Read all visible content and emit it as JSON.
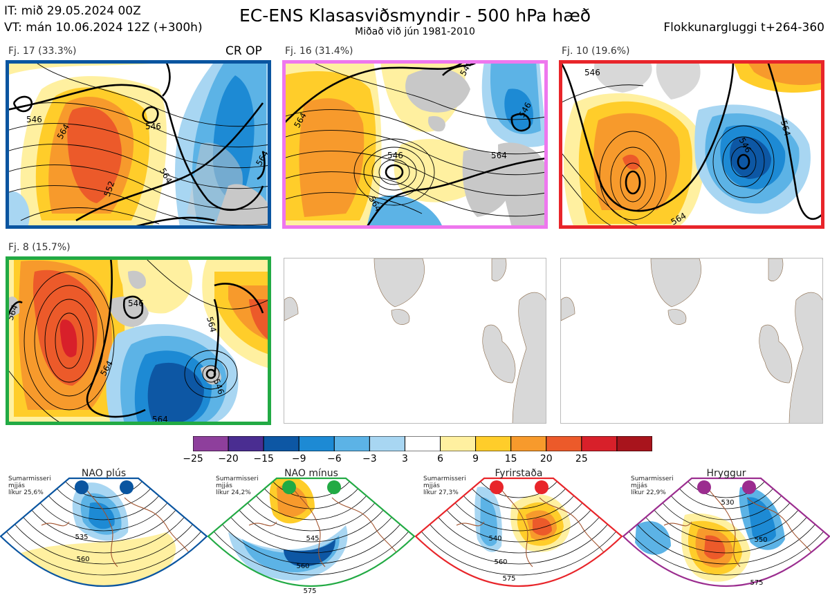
{
  "header": {
    "issue_time": "IT: mið 29.05.2024 00Z",
    "valid_time": "VT: mán 10.06.2024 12Z  (+300h)",
    "title": "EC-ENS Klasasviðsmyndir - 500 hPa hæð",
    "subtitle": "Miðað við jún 1981-2010",
    "window": "Flokkunargluggi t+264-360",
    "markers": "CR OP"
  },
  "clusters": [
    {
      "label": "Fj. 17 (33.3%)",
      "frame_color": "#0a55a0",
      "contours": [
        "546",
        "546",
        "564",
        "564",
        "552",
        "564"
      ]
    },
    {
      "label": "Fj. 16 (31.4%)",
      "frame_color": "#ee77ee",
      "contours": [
        "564",
        "546",
        "564",
        "564",
        "546",
        "546"
      ]
    },
    {
      "label": "Fj. 10 (19.6%)",
      "frame_color": "#e8252a",
      "contours": [
        "546",
        "546",
        "564",
        "564"
      ]
    },
    {
      "label": "Fj. 8 (15.7%)",
      "frame_color": "#22aa44",
      "contours": [
        "546",
        "564",
        "564",
        "546",
        "564",
        "564"
      ]
    }
  ],
  "colorbar": {
    "colors": [
      "#8e3f9c",
      "#4a2d91",
      "#0d57a4",
      "#1d8ad4",
      "#5cb3e6",
      "#a8d6f2",
      "#ffffff",
      "#fff0a0",
      "#ffcd2a",
      "#f79a2c",
      "#ec5a2a",
      "#d8202a",
      "#a8141c"
    ],
    "ticks": [
      "−25",
      "−20",
      "−15",
      "−9",
      "−6",
      "−3",
      "3",
      "6",
      "9",
      "15",
      "20",
      "25"
    ]
  },
  "regimes": [
    {
      "name": "NAO plús",
      "season": "Sumarmisseri",
      "spread": "mjjás",
      "prob": "líkur 25,6%",
      "color": "#0a55a0",
      "contours": [
        "535",
        "560"
      ]
    },
    {
      "name": "NAO mínus",
      "season": "Sumarmisseri",
      "spread": "mjjás",
      "prob": "líkur 24,2%",
      "color": "#22aa44",
      "contours": [
        "545",
        "560",
        "575"
      ]
    },
    {
      "name": "Fyrirstaða",
      "season": "Sumarmisseri",
      "spread": "mjjás",
      "prob": "líkur 27,3%",
      "color": "#e8252a",
      "contours": [
        "540",
        "560",
        "575"
      ]
    },
    {
      "name": "Hryggur",
      "season": "Sumarmisseri",
      "spread": "mjjás",
      "prob": "líkur 22,9%",
      "color": "#9b2d8f",
      "contours": [
        "530",
        "550",
        "575"
      ]
    }
  ]
}
